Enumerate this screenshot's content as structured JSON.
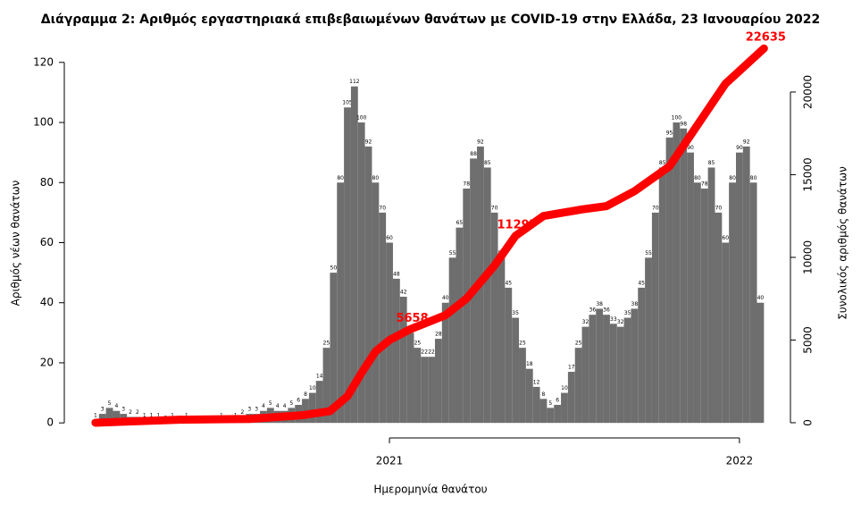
{
  "chart_data": {
    "type": "bar",
    "title": "Διάγραμμα 2: Αριθμός εργαστηριακά επιβεβαιωμένων θανάτων με COVID-19 στην Ελλάδα, 23 Ιανουαρίου 2022",
    "x_label": "Ημερομηνία θανάτου",
    "y_label": "Αριθμός νέων θανάτων",
    "y2_label": "Συνολικός αριθμός θανάτων",
    "xlim": [
      2020.071,
      2022.087
    ],
    "xticks": [
      2021,
      2022
    ],
    "ylim": [
      -5,
      125
    ],
    "yticks": [
      0,
      20,
      40,
      60,
      80,
      100,
      120
    ],
    "y2lim": [
      -920,
      22700
    ],
    "y2ticks": [
      0,
      5000,
      10000,
      15000,
      20000
    ],
    "series": [
      {
        "type": "bar",
        "color": "#6e6e6e",
        "x": [
          2020.16,
          2020.18,
          2020.2,
          2020.22,
          2020.24,
          2020.26,
          2020.28,
          2020.3,
          2020.32,
          2020.34,
          2020.36,
          2020.38,
          2020.4,
          2020.42,
          2020.44,
          2020.46,
          2020.48,
          2020.5,
          2020.52,
          2020.54,
          2020.56,
          2020.58,
          2020.6,
          2020.62,
          2020.64,
          2020.66,
          2020.68,
          2020.7,
          2020.72,
          2020.74,
          2020.76,
          2020.78,
          2020.8,
          2020.82,
          2020.84,
          2020.86,
          2020.88,
          2020.9,
          2020.92,
          2020.94,
          2020.96,
          2020.98,
          2021.0,
          2021.02,
          2021.04,
          2021.06,
          2021.08,
          2021.1,
          2021.12,
          2021.14,
          2021.16,
          2021.18,
          2021.2,
          2021.22,
          2021.24,
          2021.26,
          2021.28,
          2021.3,
          2021.32,
          2021.34,
          2021.36,
          2021.38,
          2021.4,
          2021.42,
          2021.44,
          2021.46,
          2021.48,
          2021.5,
          2021.52,
          2021.54,
          2021.56,
          2021.58,
          2021.6,
          2021.62,
          2021.64,
          2021.66,
          2021.68,
          2021.7,
          2021.72,
          2021.74,
          2021.76,
          2021.78,
          2021.8,
          2021.82,
          2021.84,
          2021.86,
          2021.88,
          2021.9,
          2021.92,
          2021.94,
          2021.96,
          2021.98,
          2022.0,
          2022.02,
          2022.04,
          2022.06
        ],
        "values": [
          1,
          3,
          5,
          4,
          3,
          2,
          2,
          1,
          1,
          1,
          0,
          1,
          0,
          1,
          0,
          0,
          0,
          0,
          1,
          0,
          1,
          2,
          3,
          3,
          4,
          5,
          4,
          4,
          5,
          6,
          8,
          10,
          14,
          25,
          50,
          80,
          105,
          112,
          100,
          92,
          80,
          70,
          60,
          48,
          42,
          30,
          25,
          22,
          22,
          28,
          40,
          55,
          65,
          78,
          88,
          92,
          85,
          70,
          55,
          45,
          35,
          25,
          18,
          12,
          8,
          5,
          6,
          10,
          17,
          25,
          32,
          36,
          38,
          36,
          33,
          32,
          35,
          38,
          45,
          55,
          70,
          85,
          95,
          100,
          98,
          90,
          80,
          78,
          85,
          70,
          60,
          80,
          90,
          92,
          80,
          40
        ]
      },
      {
        "type": "line",
        "axis": "y2",
        "color": "#ff0000",
        "x": [
          2020.16,
          2020.4,
          2020.6,
          2020.75,
          2020.83,
          2020.88,
          2020.92,
          2020.96,
          2021.0,
          2021.06,
          2021.16,
          2021.22,
          2021.3,
          2021.36,
          2021.44,
          2021.55,
          2021.62,
          2021.7,
          2021.8,
          2021.88,
          2021.96,
          2022.07
        ],
        "values": [
          0,
          180,
          230,
          450,
          700,
          1600,
          3000,
          4300,
          5000,
          5658,
          6500,
          7500,
          9500,
          11297,
          12500,
          12900,
          13100,
          14000,
          15500,
          18000,
          20500,
          22635
        ],
        "value_labels": [
          null,
          null,
          null,
          null,
          null,
          null,
          null,
          null,
          null,
          "5658",
          null,
          null,
          null,
          "11297",
          null,
          null,
          null,
          null,
          null,
          null,
          null,
          "22635"
        ]
      }
    ]
  }
}
